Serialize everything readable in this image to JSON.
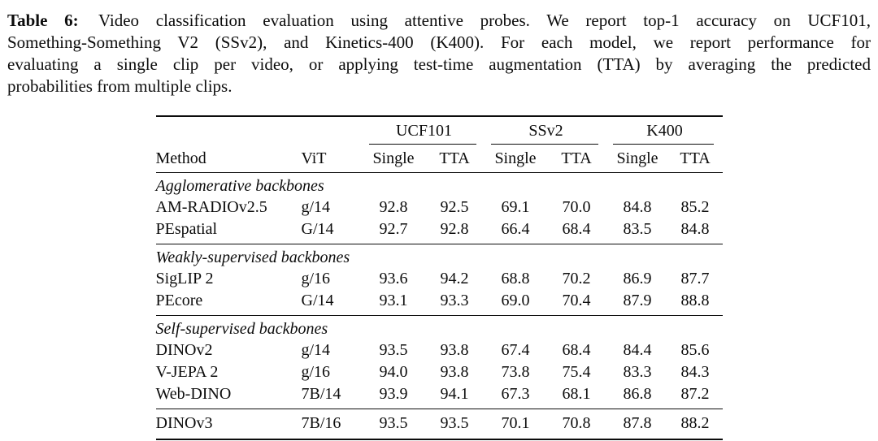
{
  "caption": {
    "label": "Table 6:",
    "lines": [
      "Video classification evaluation using attentive probes.  We report top-1 accuracy on UCF101,",
      "Something-Something V2 (SSv2), and Kinetics-400 (K400).  For each model, we report performance for",
      "evaluating a single clip per video, or applying test-time augmentation (TTA) by averaging the predicted",
      "probabilities from multiple clips."
    ]
  },
  "table": {
    "group_headers": [
      {
        "label": "UCF101"
      },
      {
        "label": "SSv2"
      },
      {
        "label": "K400"
      }
    ],
    "column_headers": [
      "Method",
      "ViT",
      "Single",
      "TTA",
      "Single",
      "TTA",
      "Single",
      "TTA"
    ],
    "sections": [
      {
        "title": "Agglomerative backbones",
        "rows": [
          {
            "method": "AM-RADIOv2.5",
            "vit": "g/14",
            "values": [
              "92.8",
              "92.5",
              "69.1",
              "70.0",
              "84.8",
              "85.2"
            ],
            "bold": []
          },
          {
            "method": "PEspatial",
            "vit": "G/14",
            "values": [
              "92.7",
              "92.8",
              "66.4",
              "68.4",
              "83.5",
              "84.8"
            ],
            "bold": []
          }
        ]
      },
      {
        "title": "Weakly-supervised backbones",
        "rows": [
          {
            "method": "SigLIP 2",
            "vit": "g/16",
            "values": [
              "93.6",
              "94.2",
              "68.8",
              "70.2",
              "86.9",
              "87.7"
            ],
            "bold": [
              1
            ]
          },
          {
            "method": "PEcore",
            "vit": "G/14",
            "values": [
              "93.1",
              "93.3",
              "69.0",
              "70.4",
              "87.9",
              "88.8"
            ],
            "bold": [
              4,
              5
            ]
          }
        ]
      },
      {
        "title": "Self-supervised backbones",
        "rows": [
          {
            "method": "DINOv2",
            "vit": "g/14",
            "values": [
              "93.5",
              "93.8",
              "67.4",
              "68.4",
              "84.4",
              "85.6"
            ],
            "bold": []
          },
          {
            "method": "V-JEPA 2",
            "vit": "g/16",
            "values": [
              "94.0",
              "93.8",
              "73.8",
              "75.4",
              "83.3",
              "84.3"
            ],
            "bold": [
              0,
              2,
              3
            ]
          },
          {
            "method": "Web-DINO",
            "vit": "7B/14",
            "values": [
              "93.9",
              "94.1",
              "67.3",
              "68.1",
              "86.8",
              "87.2"
            ],
            "bold": []
          }
        ]
      },
      {
        "title": null,
        "rows": [
          {
            "method": "DINOv3",
            "vit": "7B/16",
            "values": [
              "93.5",
              "93.5",
              "70.1",
              "70.8",
              "87.8",
              "88.2"
            ],
            "bold": []
          }
        ]
      }
    ]
  }
}
